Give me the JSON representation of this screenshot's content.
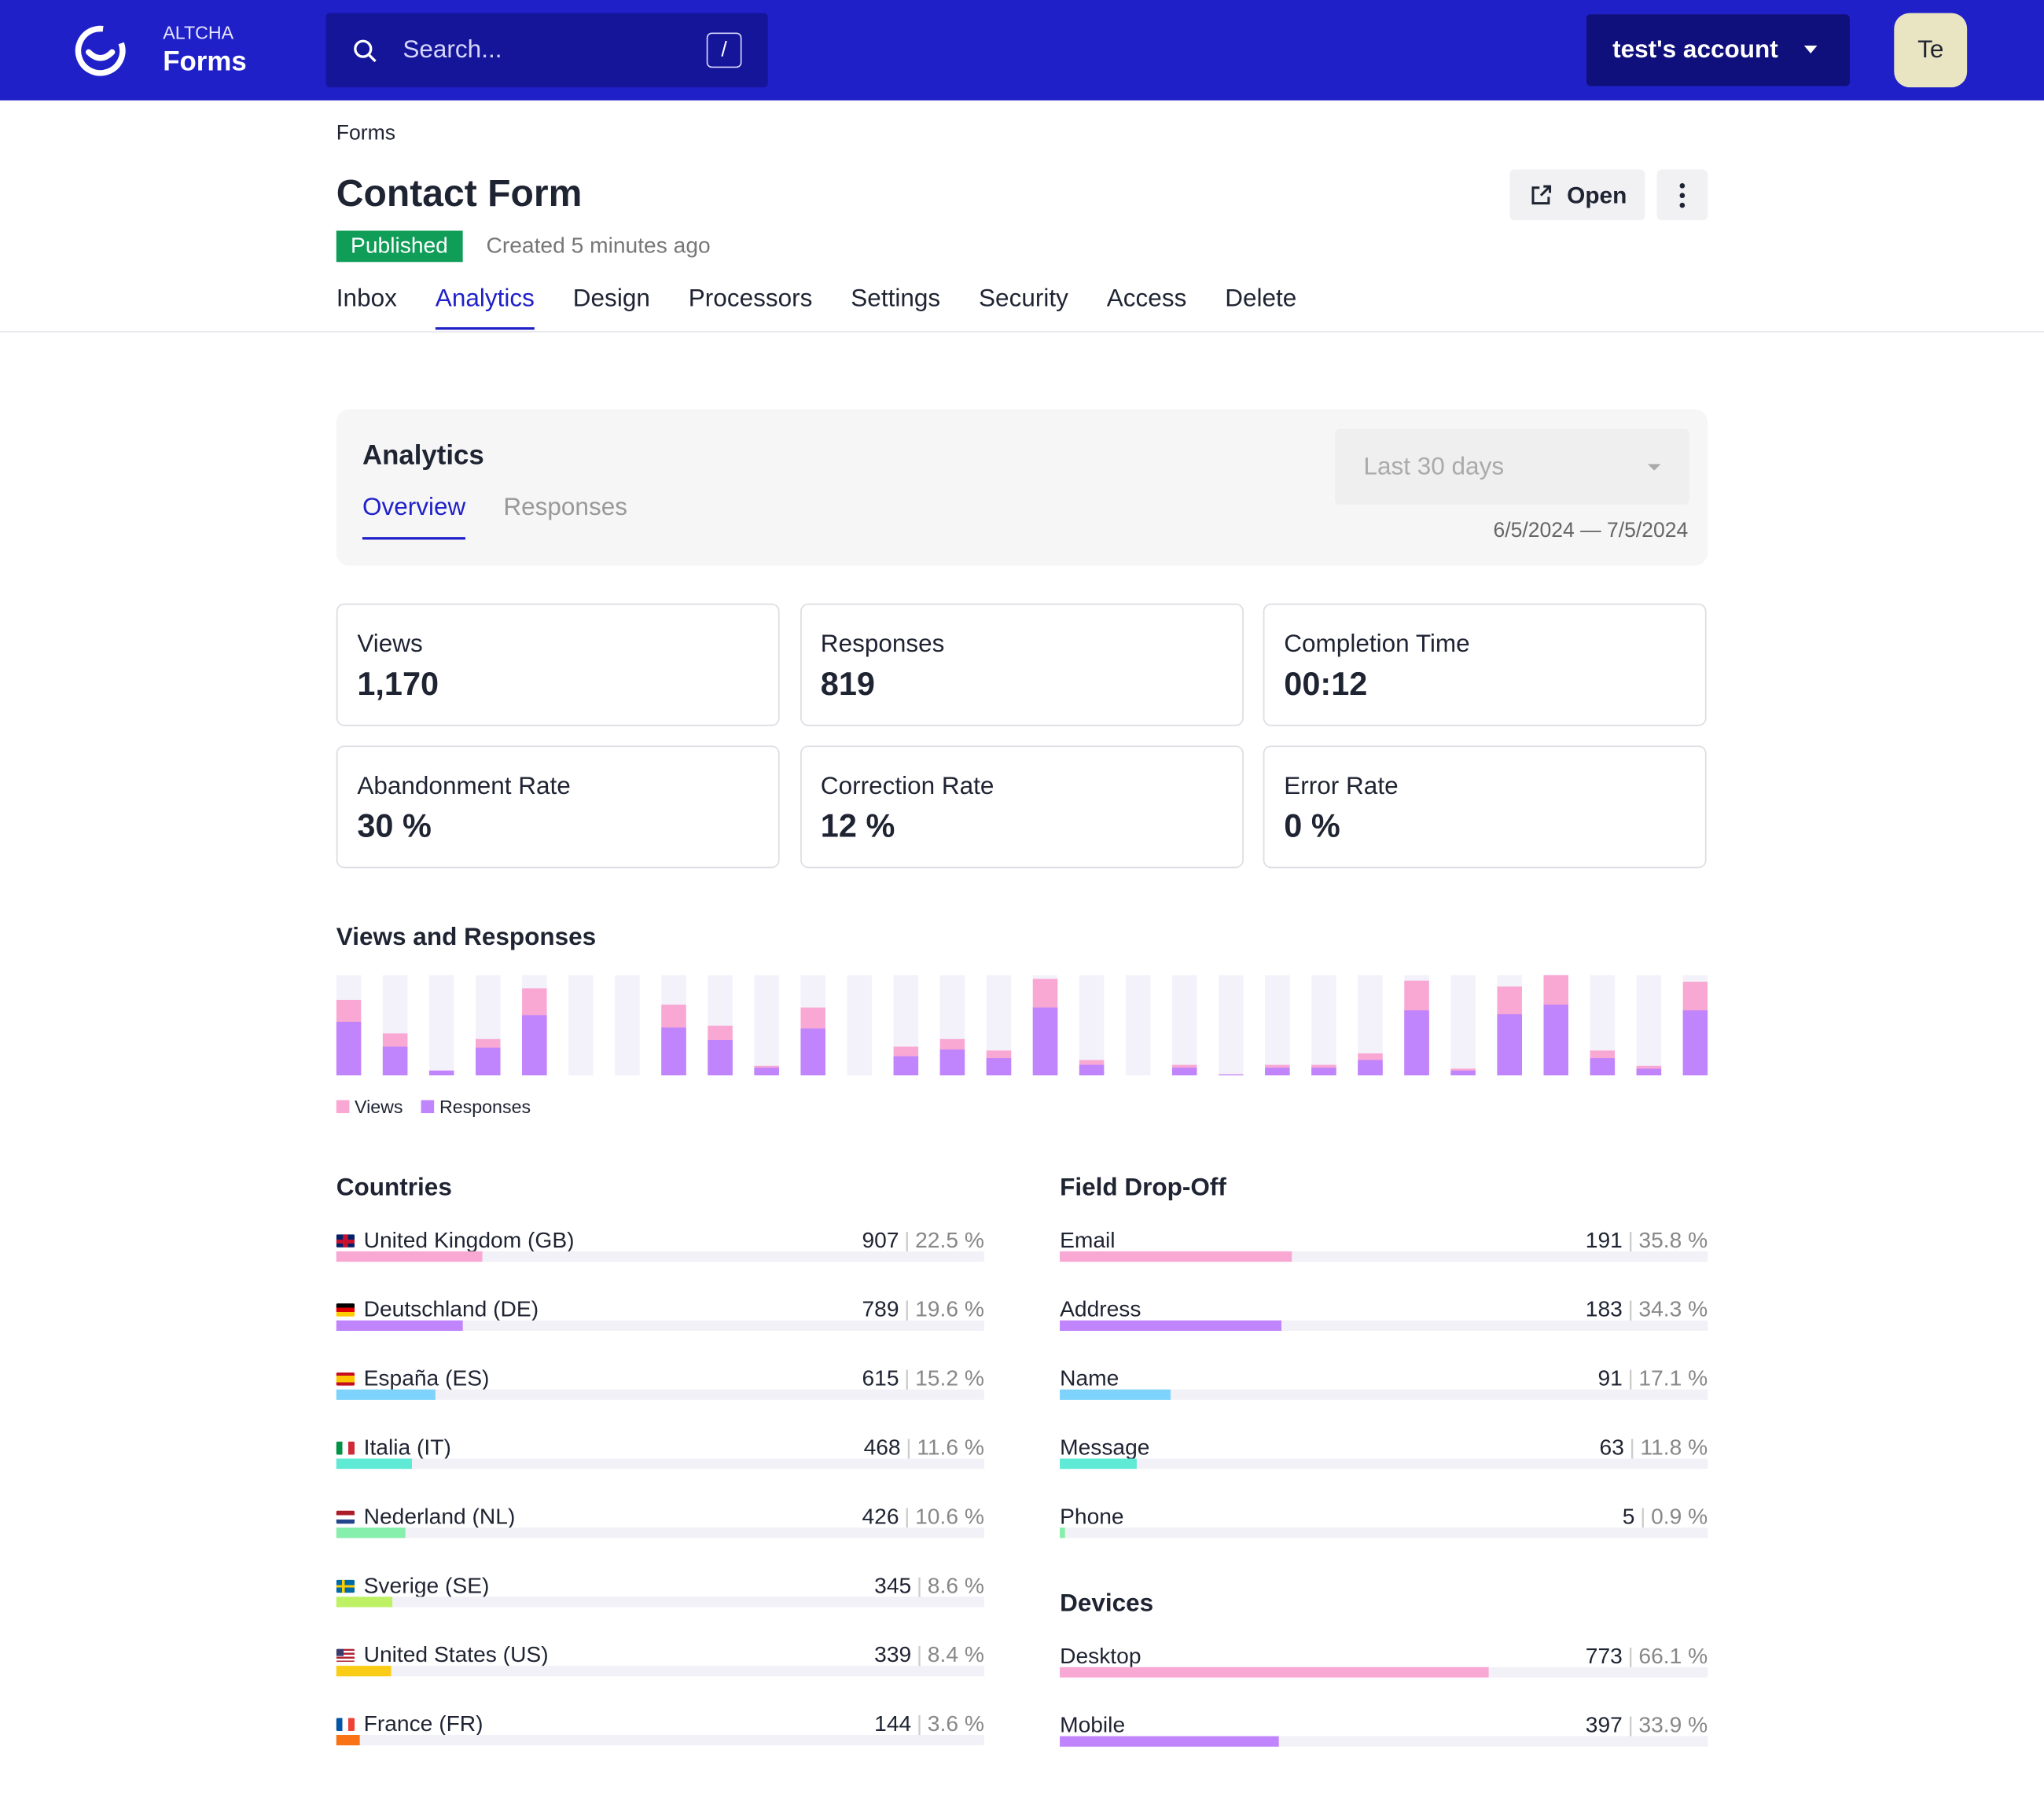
{
  "header": {
    "brand_small": "ALTCHA",
    "brand": "Forms",
    "search_placeholder": "Search...",
    "search_shortcut": "/",
    "account": "test's account",
    "avatar": "Te"
  },
  "page": {
    "breadcrumb": "Forms",
    "title": "Contact Form",
    "status": "Published",
    "created": "Created 5 minutes ago",
    "open_button": "Open",
    "tabs": [
      "Inbox",
      "Analytics",
      "Design",
      "Processors",
      "Settings",
      "Security",
      "Access",
      "Delete"
    ],
    "active_tab": 1
  },
  "analytics": {
    "title": "Analytics",
    "tabs": [
      "Overview",
      "Responses"
    ],
    "active_tab": 0,
    "period": "Last 30 days",
    "date_range": "6/5/2024 — 7/5/2024"
  },
  "stats": [
    {
      "label": "Views",
      "value": "1,170"
    },
    {
      "label": "Responses",
      "value": "819"
    },
    {
      "label": "Completion Time",
      "value": "00:12"
    },
    {
      "label": "Abandonment Rate",
      "value": "30 %"
    },
    {
      "label": "Correction Rate",
      "value": "12 %"
    },
    {
      "label": "Error Rate",
      "value": "0 %"
    }
  ],
  "chart_data": {
    "type": "bar",
    "title": "Views and Responses",
    "ylim": [
      0,
      105
    ],
    "series": [
      {
        "name": "Views",
        "color": "#f9a8d4",
        "values": [
          79,
          44,
          5,
          38,
          91,
          0,
          0,
          74,
          52,
          10,
          71,
          0,
          30,
          38,
          26,
          101,
          16,
          0,
          11,
          1,
          11,
          11,
          23,
          99,
          7,
          93,
          105,
          26,
          10,
          98
        ]
      },
      {
        "name": "Responses",
        "color": "#c084fc",
        "values": [
          56,
          30,
          5,
          29,
          63,
          0,
          0,
          50,
          37,
          8,
          49,
          0,
          20,
          27,
          18,
          71,
          11,
          0,
          8,
          1,
          8,
          8,
          16,
          68,
          5,
          64,
          74,
          18,
          7,
          68
        ]
      }
    ]
  },
  "countries": {
    "title": "Countries",
    "rows": [
      {
        "name": "United Kingdom (GB)",
        "count": 907,
        "percent": {
          "value": 22.5,
          "label": "22.5 %"
        }
      },
      {
        "name": "Deutschland (DE)",
        "count": 789,
        "percent": {
          "value": 19.6,
          "label": "19.6 %"
        }
      },
      {
        "name": "España (ES)",
        "count": 615,
        "percent": {
          "value": 15.2,
          "label": "15.2 %"
        }
      },
      {
        "name": "Italia (IT)",
        "count": 468,
        "percent": {
          "value": 11.6,
          "label": "11.6 %"
        }
      },
      {
        "name": "Nederland (NL)",
        "count": 426,
        "percent": {
          "value": 10.6,
          "label": "10.6 %"
        }
      },
      {
        "name": "Sverige (SE)",
        "count": 345,
        "percent": {
          "value": 8.6,
          "label": "8.6 %"
        }
      },
      {
        "name": "United States (US)",
        "count": 339,
        "percent": {
          "value": 8.4,
          "label": "8.4 %"
        }
      },
      {
        "name": "France (FR)",
        "count": 144,
        "percent": {
          "value": 3.6,
          "label": "3.6 %"
        }
      }
    ]
  },
  "field_dropoff": {
    "title": "Field Drop-Off",
    "rows": [
      {
        "name": "Email",
        "count": 191,
        "percent": {
          "value": 35.8,
          "label": "35.8 %"
        }
      },
      {
        "name": "Address",
        "count": 183,
        "percent": {
          "value": 34.3,
          "label": "34.3 %"
        }
      },
      {
        "name": "Name",
        "count": 91,
        "percent": {
          "value": 17.1,
          "label": "17.1 %"
        }
      },
      {
        "name": "Message",
        "count": 63,
        "percent": {
          "value": 11.8,
          "label": "11.8 %"
        }
      },
      {
        "name": "Phone",
        "count": 5,
        "percent": {
          "value": 0.9,
          "label": "0.9 %"
        }
      }
    ]
  },
  "devices": {
    "title": "Devices",
    "rows": [
      {
        "name": "Desktop",
        "count": 773,
        "percent": {
          "value": 66.1,
          "label": "66.1 %"
        }
      },
      {
        "name": "Mobile",
        "count": 397,
        "percent": {
          "value": 33.9,
          "label": "33.9 %"
        }
      }
    ]
  }
}
